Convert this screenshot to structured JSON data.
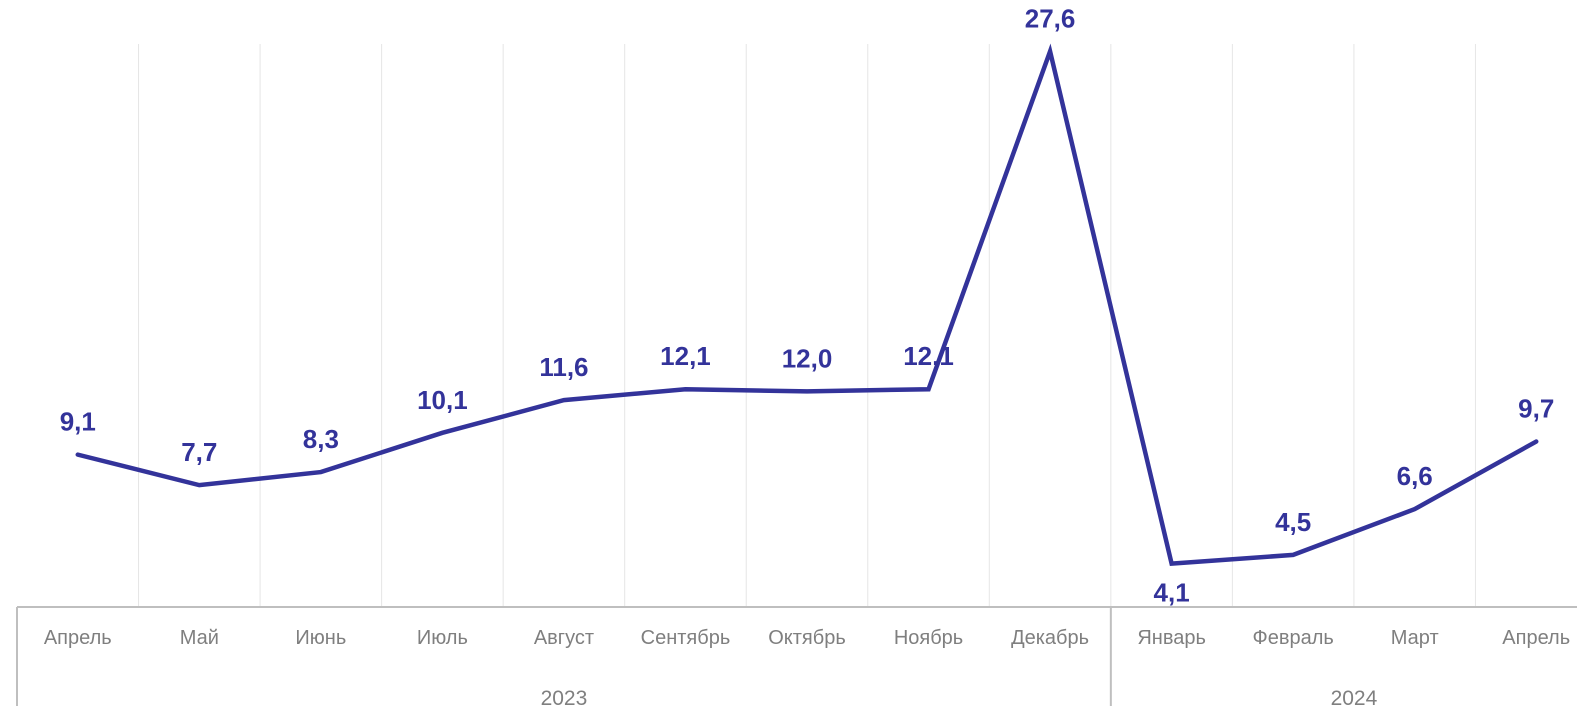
{
  "chart_data": {
    "type": "line",
    "categories": [
      "Апрель",
      "Май",
      "Июнь",
      "Июль",
      "Август",
      "Сентябрь",
      "Октябрь",
      "Ноябрь",
      "Декабрь",
      "Январь",
      "Февраль",
      "Март",
      "Апрель"
    ],
    "groups": [
      {
        "label": "2023",
        "start": 0,
        "end": 8
      },
      {
        "label": "2024",
        "start": 9,
        "end": 12
      }
    ],
    "series": [
      {
        "values": [
          9.1,
          7.7,
          8.3,
          10.1,
          11.6,
          12.1,
          12.0,
          12.1,
          27.6,
          4.1,
          4.5,
          6.6,
          9.7
        ],
        "labels": [
          "9,1",
          "7,7",
          "8,3",
          "10,1",
          "11,6",
          "12,1",
          "12,0",
          "12,1",
          "27,6",
          "4,1",
          "4,5",
          "6,6",
          "9,7"
        ],
        "label_position": [
          "above",
          "above",
          "above",
          "above",
          "above",
          "above",
          "above",
          "above",
          "above",
          "below",
          "above",
          "above",
          "above"
        ]
      }
    ],
    "title": "",
    "xlabel": "",
    "ylabel": "",
    "ylim": [
      0,
      30
    ],
    "grid": "vertical",
    "legend": "none",
    "colors": {
      "line": "#33339a",
      "grid": "#e6e6e6",
      "axis": "#bfbfbf",
      "text": "#7f7f7f"
    }
  }
}
